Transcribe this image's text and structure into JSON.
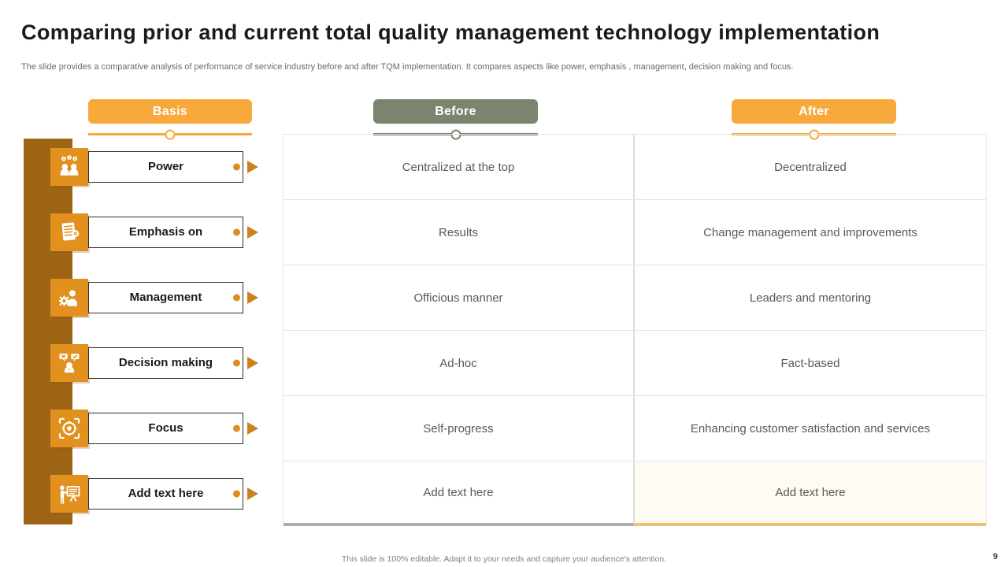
{
  "slide": {
    "title": "Comparing prior and current total quality management technology implementation",
    "subtitle": "The slide provides a comparative analysis of  performance of service industry before and after TQM implementation.  It compares aspects like power, emphasis , management,  decision making  and focus.",
    "footer": "This slide is 100% editable.  Adapt it to your needs and capture your audience's attention.",
    "page_number": "9"
  },
  "columns": {
    "basis_label": "Basis",
    "before_label": "Before",
    "after_label": "After"
  },
  "colors": {
    "header_orange": "#F7A93C",
    "header_green": "#7B846F",
    "rail_brown": "#9C6414",
    "tile_orange": "#E2901E",
    "accent_dot": "#DF8C1E"
  },
  "rows": [
    {
      "icon": "people-money-icon",
      "basis": "Power",
      "before": "Centralized at the top",
      "after": "Decentralized"
    },
    {
      "icon": "document-notes-icon",
      "basis": "Emphasis on",
      "before": "Results",
      "after": "Change management  and improvements"
    },
    {
      "icon": "person-gear-icon",
      "basis": "Management",
      "before": "Officious manner",
      "after": "Leaders and mentoring"
    },
    {
      "icon": "decision-bubbles-icon",
      "basis": "Decision making",
      "before": "Ad-hoc",
      "after": "Fact-based"
    },
    {
      "icon": "target-focus-icon",
      "basis": "Focus",
      "before": "Self-progress",
      "after": "Enhancing  customer  satisfaction  and services"
    },
    {
      "icon": "presentation-icon",
      "basis": "Add text here",
      "before": "Add text  here",
      "after": "Add text  here"
    }
  ]
}
